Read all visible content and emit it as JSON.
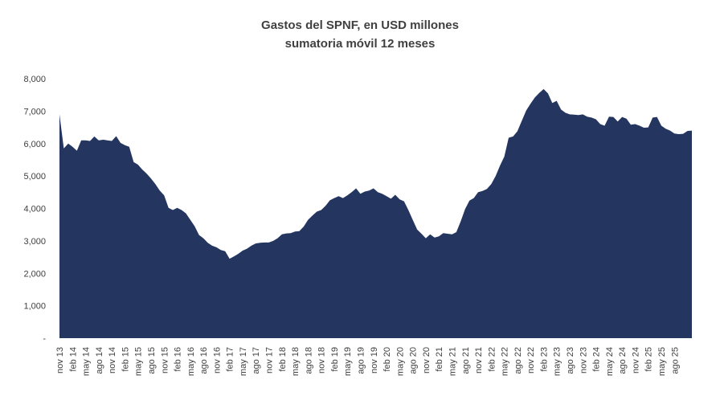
{
  "chart_data": {
    "type": "area",
    "title": "Gastos del SPNF, en USD millones",
    "subtitle": "sumatoria móvil 12 meses",
    "xlabel": "",
    "ylabel": "",
    "ylim": [
      0,
      8000
    ],
    "y_ticks": [
      "-",
      "1,000",
      "2,000",
      "3,000",
      "4,000",
      "5,000",
      "6,000",
      "7,000",
      "8,000"
    ],
    "x_tick_labels": [
      "nov 13",
      "feb 14",
      "may 14",
      "ago 14",
      "nov 14",
      "feb 15",
      "may 15",
      "ago 15",
      "nov 15",
      "feb 16",
      "may 16",
      "ago 16",
      "nov 16",
      "feb 17",
      "may 17",
      "ago 17",
      "nov 17",
      "feb 18",
      "may 18",
      "ago 18",
      "nov 18",
      "feb 19",
      "may 19",
      "ago 19",
      "nov 19",
      "feb 20",
      "may 20",
      "ago 20",
      "nov 20",
      "feb 21",
      "may 21",
      "ago 21",
      "nov 21",
      "feb 22",
      "may 22",
      "ago 22",
      "nov 22",
      "feb 23",
      "may 23",
      "ago 23",
      "nov 23",
      "feb 24",
      "may 24",
      "ago 24",
      "nov 24",
      "feb 25",
      "may 25",
      "ago 25"
    ],
    "fill_color": "#243660",
    "series": [
      {
        "name": "Gastos del SPNF",
        "values": [
          6900,
          5850,
          6000,
          5900,
          5780,
          6100,
          6100,
          6080,
          6220,
          6100,
          6120,
          6100,
          6080,
          6230,
          6020,
          5950,
          5900,
          5430,
          5350,
          5200,
          5070,
          4920,
          4750,
          4550,
          4400,
          4020,
          3950,
          4020,
          3950,
          3850,
          3650,
          3450,
          3180,
          3080,
          2940,
          2850,
          2800,
          2720,
          2680,
          2450,
          2520,
          2600,
          2700,
          2760,
          2850,
          2920,
          2940,
          2950,
          2950,
          3000,
          3080,
          3200,
          3230,
          3240,
          3290,
          3300,
          3440,
          3650,
          3780,
          3900,
          3950,
          4080,
          4250,
          4320,
          4380,
          4320,
          4400,
          4500,
          4620,
          4450,
          4520,
          4550,
          4620,
          4500,
          4450,
          4380,
          4300,
          4420,
          4280,
          4220,
          3950,
          3650,
          3350,
          3220,
          3080,
          3200,
          3100,
          3140,
          3240,
          3220,
          3200,
          3270,
          3600,
          3980,
          4240,
          4320,
          4500,
          4540,
          4600,
          4750,
          5000,
          5320,
          5600,
          6180,
          6220,
          6380,
          6700,
          7020,
          7230,
          7420,
          7560,
          7680,
          7550,
          7250,
          7320,
          7050,
          6950,
          6900,
          6890,
          6880,
          6900,
          6830,
          6800,
          6750,
          6600,
          6550,
          6830,
          6820,
          6680,
          6820,
          6770,
          6580,
          6600,
          6550,
          6490,
          6500,
          6800,
          6820,
          6550,
          6460,
          6400,
          6310,
          6290,
          6300,
          6390,
          6400
        ]
      }
    ]
  }
}
